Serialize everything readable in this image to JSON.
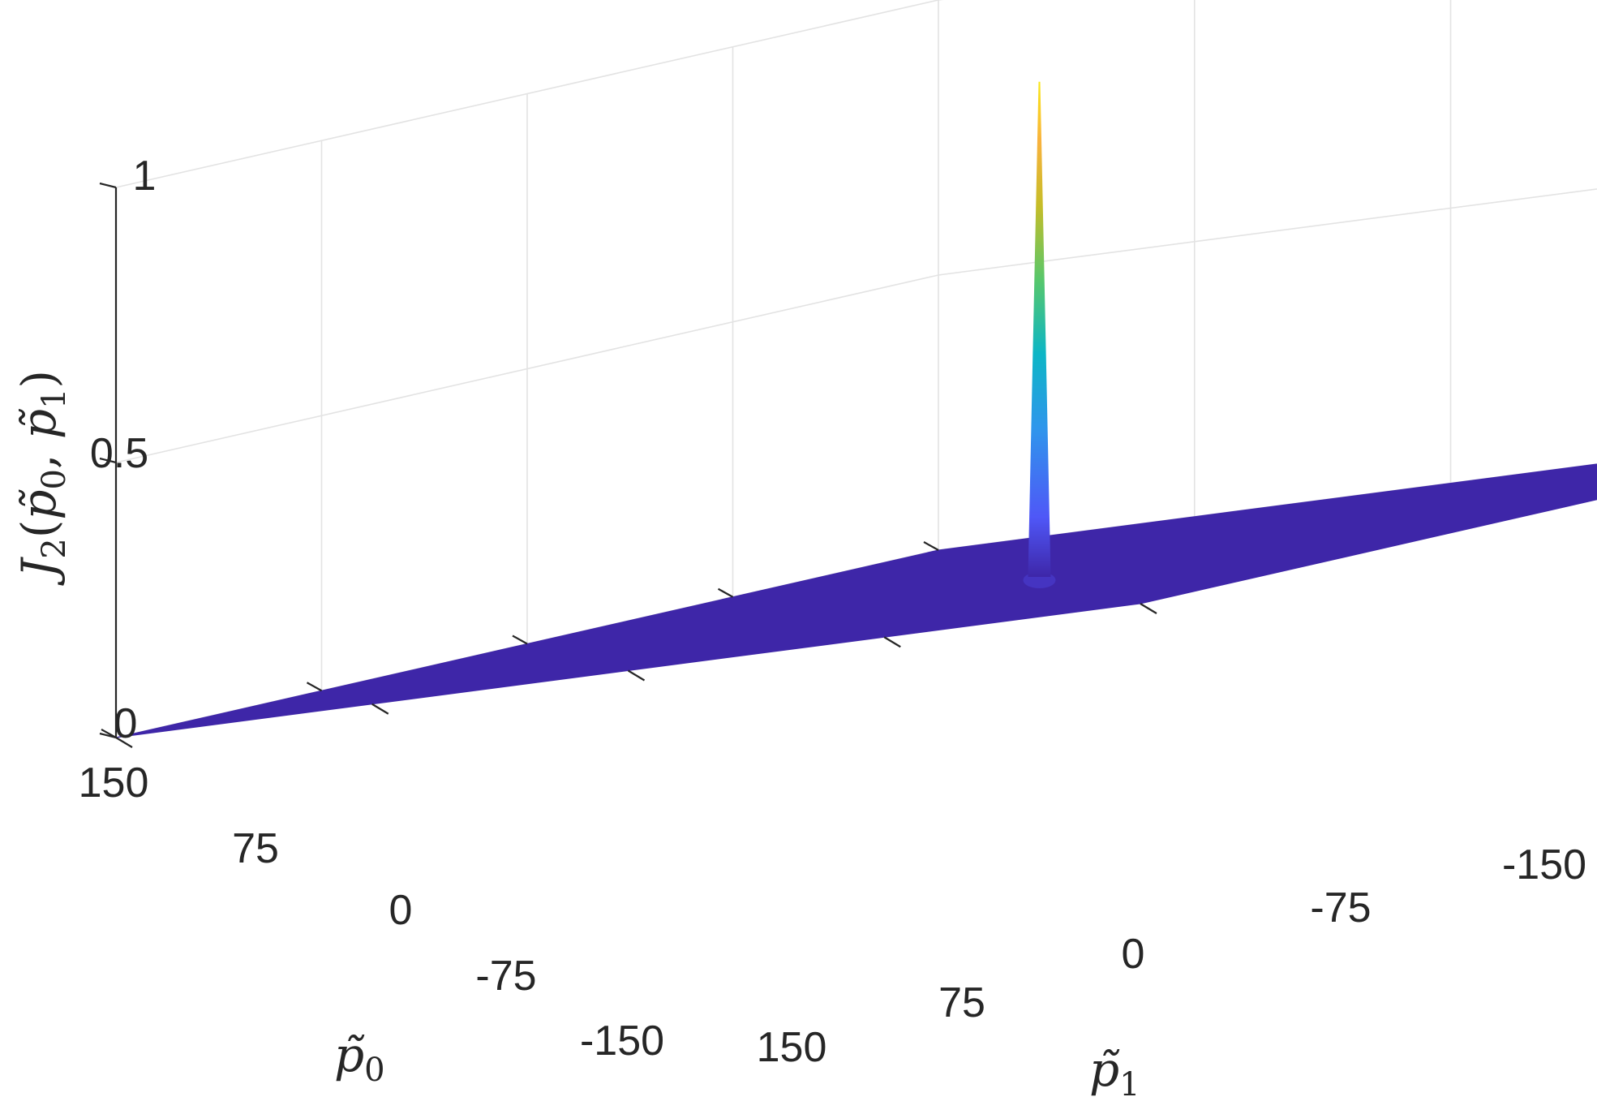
{
  "chart_data": {
    "type": "surface3d",
    "title": "",
    "x_axis": {
      "label": "p̃0",
      "label_parts": {
        "base": "p̃",
        "sub": "0"
      },
      "ticks": [
        150,
        75,
        0,
        -75,
        -150
      ],
      "tick_labels": [
        "150",
        "75",
        "0",
        "-75",
        "-150"
      ],
      "range": [
        -150,
        150
      ]
    },
    "y_axis": {
      "label": "p̃1",
      "label_parts": {
        "base": "p̃",
        "sub": "1"
      },
      "ticks": [
        150,
        75,
        0,
        -75,
        -150
      ],
      "tick_labels": [
        "150",
        "75",
        "0",
        "-75",
        "-150"
      ],
      "range": [
        -150,
        150
      ]
    },
    "z_axis": {
      "label": "J2(p̃0, p̃1)",
      "label_parts": {
        "func": "J",
        "func_sub": "2",
        "open": "(",
        "arg1": "p̃",
        "arg1_sub": "0",
        "sep": ", ",
        "arg2": "p̃",
        "arg2_sub": "1",
        "close": ")"
      },
      "ticks": [
        0,
        0.5,
        1
      ],
      "tick_labels": [
        "0",
        "0.5",
        "1"
      ],
      "range": [
        0,
        1
      ]
    },
    "surface": {
      "description_values": "function is zero everywhere except a single narrow peak",
      "base_value": 0,
      "peak": {
        "p0": 0,
        "p1": 0,
        "value": 0.9
      }
    },
    "grid": true,
    "colormap": "parula",
    "colors": {
      "base": "#3e26a8",
      "peak_gradient": [
        "#3e26a8",
        "#4f57f7",
        "#2f96ec",
        "#0cb6c6",
        "#57c76b",
        "#c6bd28",
        "#f9b23d",
        "#f9e819"
      ]
    }
  }
}
